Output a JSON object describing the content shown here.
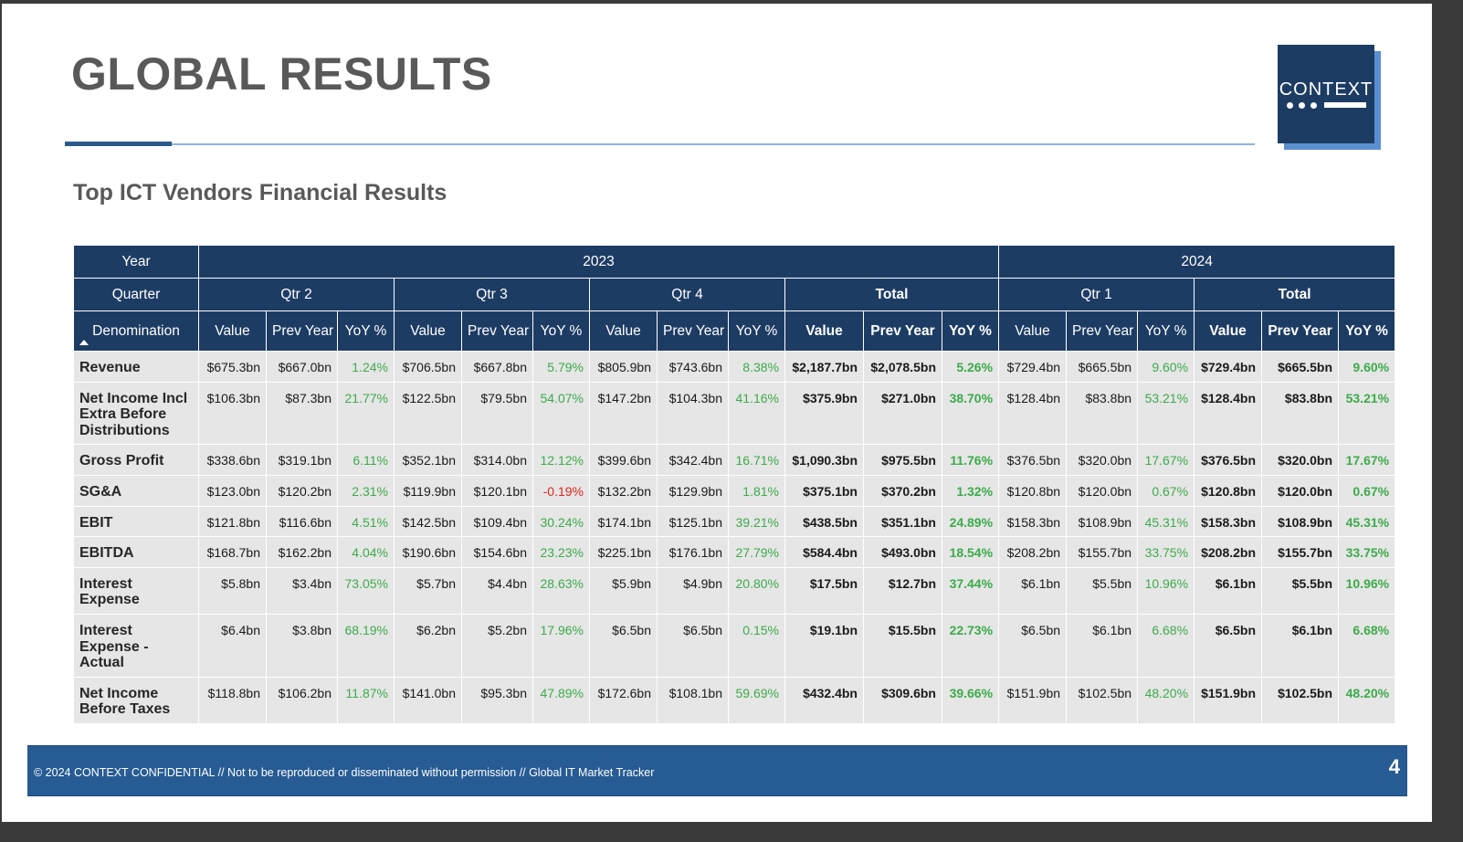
{
  "page": {
    "title": "GLOBAL RESULTS",
    "subtitle": "Top ICT Vendors Financial Results",
    "logo_text": "CONTEXT",
    "footer_text": "© 2024 CONTEXT CONFIDENTIAL // Not to be reproduced or disseminated without permission // Global IT Market Tracker",
    "page_number": "4"
  },
  "colors": {
    "header_bg": "#1d3c64",
    "positive": "#3cab4a",
    "negative": "#e0251d",
    "footer_bg": "#265b93"
  },
  "table": {
    "year_label": "Year",
    "quarter_label": "Quarter",
    "denomination_label": "Denomination",
    "years": [
      {
        "label": "2023"
      },
      {
        "label": "2024"
      }
    ],
    "groups": [
      {
        "label": "Qtr 2",
        "bold": false
      },
      {
        "label": "Qtr 3",
        "bold": false
      },
      {
        "label": "Qtr 4",
        "bold": false
      },
      {
        "label": "Total",
        "bold": true
      },
      {
        "label": "Qtr 1",
        "bold": false
      },
      {
        "label": "Total",
        "bold": true
      }
    ],
    "subheaders": [
      "Value",
      "Prev Year",
      "YoY %"
    ],
    "rows": [
      {
        "label": "Revenue",
        "cells": [
          "$675.3bn",
          "$667.0bn",
          "1.24%",
          "$706.5bn",
          "$667.8bn",
          "5.79%",
          "$805.9bn",
          "$743.6bn",
          "8.38%",
          "$2,187.7bn",
          "$2,078.5bn",
          "5.26%",
          "$729.4bn",
          "$665.5bn",
          "9.60%",
          "$729.4bn",
          "$665.5bn",
          "9.60%"
        ]
      },
      {
        "label": "Net Income Incl Extra Before Distributions",
        "cells": [
          "$106.3bn",
          "$87.3bn",
          "21.77%",
          "$122.5bn",
          "$79.5bn",
          "54.07%",
          "$147.2bn",
          "$104.3bn",
          "41.16%",
          "$375.9bn",
          "$271.0bn",
          "38.70%",
          "$128.4bn",
          "$83.8bn",
          "53.21%",
          "$128.4bn",
          "$83.8bn",
          "53.21%"
        ]
      },
      {
        "label": "Gross Profit",
        "cells": [
          "$338.6bn",
          "$319.1bn",
          "6.11%",
          "$352.1bn",
          "$314.0bn",
          "12.12%",
          "$399.6bn",
          "$342.4bn",
          "16.71%",
          "$1,090.3bn",
          "$975.5bn",
          "11.76%",
          "$376.5bn",
          "$320.0bn",
          "17.67%",
          "$376.5bn",
          "$320.0bn",
          "17.67%"
        ]
      },
      {
        "label": "SG&A",
        "cells": [
          "$123.0bn",
          "$120.2bn",
          "2.31%",
          "$119.9bn",
          "$120.1bn",
          "-0.19%",
          "$132.2bn",
          "$129.9bn",
          "1.81%",
          "$375.1bn",
          "$370.2bn",
          "1.32%",
          "$120.8bn",
          "$120.0bn",
          "0.67%",
          "$120.8bn",
          "$120.0bn",
          "0.67%"
        ]
      },
      {
        "label": "EBIT",
        "cells": [
          "$121.8bn",
          "$116.6bn",
          "4.51%",
          "$142.5bn",
          "$109.4bn",
          "30.24%",
          "$174.1bn",
          "$125.1bn",
          "39.21%",
          "$438.5bn",
          "$351.1bn",
          "24.89%",
          "$158.3bn",
          "$108.9bn",
          "45.31%",
          "$158.3bn",
          "$108.9bn",
          "45.31%"
        ]
      },
      {
        "label": "EBITDA",
        "cells": [
          "$168.7bn",
          "$162.2bn",
          "4.04%",
          "$190.6bn",
          "$154.6bn",
          "23.23%",
          "$225.1bn",
          "$176.1bn",
          "27.79%",
          "$584.4bn",
          "$493.0bn",
          "18.54%",
          "$208.2bn",
          "$155.7bn",
          "33.75%",
          "$208.2bn",
          "$155.7bn",
          "33.75%"
        ]
      },
      {
        "label": "Interest Expense",
        "cells": [
          "$5.8bn",
          "$3.4bn",
          "73.05%",
          "$5.7bn",
          "$4.4bn",
          "28.63%",
          "$5.9bn",
          "$4.9bn",
          "20.80%",
          "$17.5bn",
          "$12.7bn",
          "37.44%",
          "$6.1bn",
          "$5.5bn",
          "10.96%",
          "$6.1bn",
          "$5.5bn",
          "10.96%"
        ]
      },
      {
        "label": "Interest Expense - Actual",
        "cells": [
          "$6.4bn",
          "$3.8bn",
          "68.19%",
          "$6.2bn",
          "$5.2bn",
          "17.96%",
          "$6.5bn",
          "$6.5bn",
          "0.15%",
          "$19.1bn",
          "$15.5bn",
          "22.73%",
          "$6.5bn",
          "$6.1bn",
          "6.68%",
          "$6.5bn",
          "$6.1bn",
          "6.68%"
        ]
      },
      {
        "label": "Net Income Before Taxes",
        "cells": [
          "$118.8bn",
          "$106.2bn",
          "11.87%",
          "$141.0bn",
          "$95.3bn",
          "47.89%",
          "$172.6bn",
          "$108.1bn",
          "59.69%",
          "$432.4bn",
          "$309.6bn",
          "39.66%",
          "$151.9bn",
          "$102.5bn",
          "48.20%",
          "$151.9bn",
          "$102.5bn",
          "48.20%"
        ]
      }
    ]
  }
}
